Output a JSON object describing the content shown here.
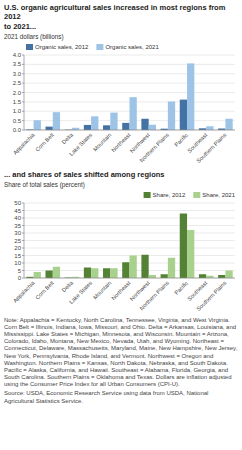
{
  "chart_data": [
    {
      "type": "bar",
      "title": "U.S. organic agricultural sales increased in most regions from 2012\nto 2021...",
      "ylabel": "2021 dollars (billions)",
      "categories": [
        "Appalachia",
        "Corn Belt",
        "Delta",
        "Lake States",
        "Mountain",
        "Northeast",
        "Northwest",
        "Northern Plains",
        "Pacific",
        "Southeast",
        "Southern Plains"
      ],
      "series": [
        {
          "name": "Organic sales, 2012",
          "color": "#4472a4",
          "values": [
            0.03,
            0.18,
            0.02,
            0.27,
            0.25,
            0.38,
            0.6,
            0.07,
            1.62,
            0.09,
            0.08
          ]
        },
        {
          "name": "Organic sales, 2021",
          "color": "#9dc3e6",
          "values": [
            0.52,
            0.95,
            0.12,
            0.73,
            0.93,
            1.75,
            0.28,
            1.52,
            3.55,
            0.2,
            0.6
          ]
        }
      ],
      "ylim": [
        0,
        4.0
      ],
      "yticks": [
        {
          "value": 0,
          "label": "0.0"
        },
        0.5,
        {
          "value": 1.0,
          "label": "1.0"
        },
        1.5,
        {
          "value": 2.0,
          "label": "2.0"
        },
        2.5,
        {
          "value": 3.0,
          "label": "3.0"
        },
        3.5,
        {
          "value": 4.0,
          "label": "4.0"
        }
      ],
      "grid": true,
      "legend": "upper left"
    },
    {
      "type": "bar",
      "title": "... and shares of sales shifted among regions",
      "ylabel": "Share of total sales (percent)",
      "categories": [
        "Appalachia",
        "Corn Belt",
        "Delta",
        "Lake States",
        "Mountain",
        "Northeast",
        "Northwest",
        "Northern Plains",
        "Pacific",
        "Southeast",
        "Southern Plains"
      ],
      "series": [
        {
          "name": "Share, 2012",
          "color": "#548235",
          "values": [
            0.8,
            5.0,
            0.3,
            7.0,
            6.5,
            10.5,
            15.5,
            2.5,
            43.0,
            2.5,
            2.0
          ]
        },
        {
          "name": "Share, 2021",
          "color": "#a9d18e",
          "values": [
            4.0,
            7.5,
            0.8,
            6.5,
            6.5,
            15.0,
            2.0,
            13.5,
            32.0,
            1.5,
            5.0
          ]
        }
      ],
      "ylim": [
        0,
        50
      ],
      "yticks": [
        0,
        5,
        10,
        15,
        20,
        25,
        30,
        35,
        40,
        45,
        50
      ],
      "grid": true,
      "legend": "upper right",
      "annotations": [
        "Note: Appalachia = Kentucky, North Carolina, Tennessee, Virginia, and West Virginia. Corn Belt = Illinois, Indiana, Iowa, Missouri, and Ohio. Delta = Arkansas, Louisiana, and Mississippi. Lake States = Michigan, Minnesota, and Wisconsin. Mountain = Arizona, Colorado, Idaho, Montana, New Mexico, Nevada, Utah, and Wyoming. Northeast = Connecticut, Delaware, Massachusetts, Maryland, Maine, New Hampshire, New Jersey, New York, Pennsylvania, Rhode Island, and Vermont. Northwest = Oregon and Washington. Northern Plains = Kansas, North Dakota, Nebraska, and South Dakota. Pacific = Alaska, California, and Hawaii. Southeast = Alabama, Florida, Georgia, and South Carolina. Southern Plains = Oklahoma and Texas. Dollars are inflation adjusted using the Consumer Price Index for all Urban Consumers (CPI-U).",
        "Source: USDA, Economic Research Service using data from USDA, National Agricultural Statistics Service."
      ]
    }
  ]
}
